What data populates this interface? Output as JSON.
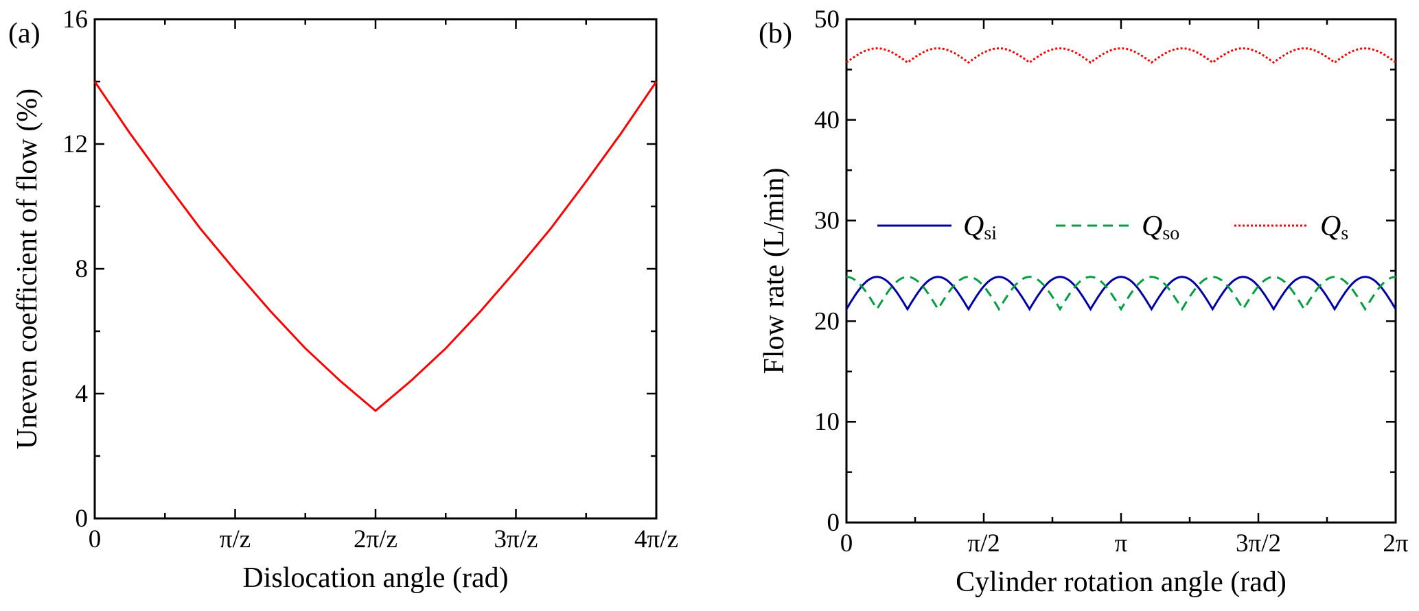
{
  "chart_data": [
    {
      "type": "line",
      "panel_label": "(a)",
      "title": "",
      "xlabel": "Dislocation angle (rad)",
      "ylabel": "Uneven coefficient of flow (%)",
      "xlim": [
        0,
        4
      ],
      "ylim": [
        0,
        16
      ],
      "x_unit": "π/z",
      "xticks": [
        0,
        1,
        2,
        3,
        4
      ],
      "xtick_labels": [
        "0",
        "π/z",
        "2π/z",
        "3π/z",
        "4π/z"
      ],
      "x_minor_ticks": [
        0.5,
        1.5,
        2.5,
        3.5
      ],
      "yticks": [
        0,
        4,
        8,
        12,
        16
      ],
      "ytick_labels": [
        "0",
        "4",
        "8",
        "12",
        "16"
      ],
      "y_minor_ticks": [
        2,
        6,
        10,
        14
      ],
      "grid": false,
      "legend": null,
      "series": [
        {
          "name": "Uneven coefficient",
          "color": "#ff0000",
          "style": "solid",
          "x": [
            0,
            0.25,
            0.5,
            0.75,
            1.0,
            1.25,
            1.5,
            1.75,
            2.0,
            2.25,
            2.5,
            2.75,
            3.0,
            3.25,
            3.5,
            3.75,
            4.0
          ],
          "y": [
            14.0,
            12.35,
            10.8,
            9.3,
            7.95,
            6.65,
            5.45,
            4.4,
            3.45,
            4.4,
            5.45,
            6.65,
            7.95,
            9.3,
            10.8,
            12.35,
            14.0
          ]
        }
      ]
    },
    {
      "type": "line",
      "panel_label": "(b)",
      "title": "",
      "xlabel": "Cylinder rotation angle (rad)",
      "ylabel": "Flow rate (L/min)",
      "xlim": [
        0,
        6.2832
      ],
      "ylim": [
        0,
        50
      ],
      "xticks": [
        0,
        1.5708,
        3.1416,
        4.7124,
        6.2832
      ],
      "xtick_labels": [
        "0",
        "π/2",
        "π",
        "3π/2",
        "2π"
      ],
      "x_minor_ticks": [
        0.7854,
        2.3562,
        3.927,
        5.4978
      ],
      "yticks": [
        0,
        10,
        20,
        30,
        40,
        50
      ],
      "ytick_labels": [
        "0",
        "10",
        "20",
        "30",
        "40",
        "50"
      ],
      "y_minor_ticks": [
        5,
        15,
        25,
        35,
        45
      ],
      "grid": false,
      "legend_placement": "center-upper inside",
      "period_count": 9,
      "series": [
        {
          "name": "Qsi",
          "label_main": "Q",
          "label_sub": "si",
          "color": "#0000aa",
          "style": "solid",
          "min": 21.2,
          "max": 24.4,
          "phase": 0
        },
        {
          "name": "Qso",
          "label_main": "Q",
          "label_sub": "so",
          "color": "#00a040",
          "style": "dashed",
          "min": 21.2,
          "max": 24.4,
          "phase": 0.5
        },
        {
          "name": "Qs",
          "label_main": "Q",
          "label_sub": "s",
          "color": "#ff0000",
          "style": "dotted",
          "min": 45.7,
          "max": 47.1,
          "phase": 0
        }
      ]
    }
  ]
}
